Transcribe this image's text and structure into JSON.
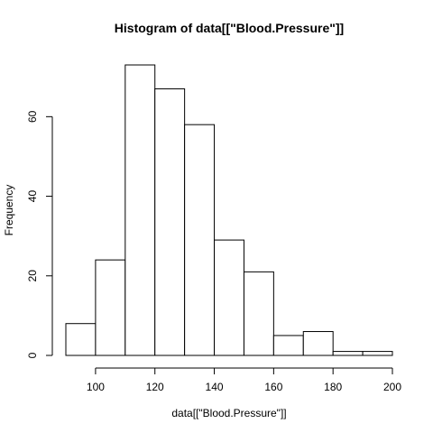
{
  "chart_data": {
    "type": "bar",
    "title": "Histogram of data[[\"Blood.Pressure\"]]",
    "xlabel": "data[[\"Blood.Pressure\"]]",
    "ylabel": "Frequency",
    "bins": [
      {
        "x0": 90,
        "x1": 100,
        "value": 8
      },
      {
        "x0": 100,
        "x1": 110,
        "value": 24
      },
      {
        "x0": 110,
        "x1": 120,
        "value": 73
      },
      {
        "x0": 120,
        "x1": 130,
        "value": 67
      },
      {
        "x0": 130,
        "x1": 140,
        "value": 58
      },
      {
        "x0": 140,
        "x1": 150,
        "value": 29
      },
      {
        "x0": 150,
        "x1": 160,
        "value": 21
      },
      {
        "x0": 160,
        "x1": 170,
        "value": 5
      },
      {
        "x0": 170,
        "x1": 180,
        "value": 6
      },
      {
        "x0": 180,
        "x1": 190,
        "value": 1
      },
      {
        "x0": 190,
        "x1": 200,
        "value": 1
      }
    ],
    "xlim": [
      90,
      200
    ],
    "ylim": [
      0,
      73
    ],
    "xticks": [
      100,
      120,
      140,
      160,
      180,
      200
    ],
    "yticks": [
      0,
      20,
      40,
      60
    ],
    "xtick_labels": [
      "100",
      "120",
      "140",
      "160",
      "180",
      "200"
    ],
    "ytick_labels": [
      "0",
      "20",
      "40",
      "60"
    ],
    "grid": false,
    "legend": "none"
  }
}
